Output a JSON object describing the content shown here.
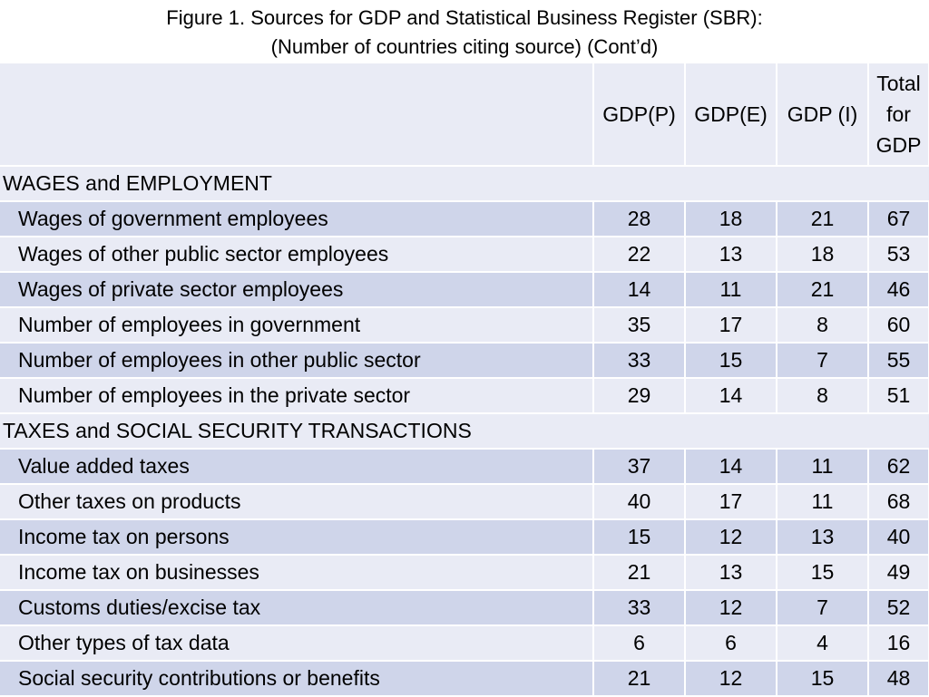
{
  "title": {
    "line1": "Figure 1. Sources for GDP and Statistical Business Register (SBR):",
    "line2": "(Number of countries citing source) (Cont’d)"
  },
  "columns": {
    "label": "",
    "gdp_p": "GDP(P)",
    "gdp_e": "GDP(E)",
    "gdp_i": "GDP (I)",
    "total_line1": "Total",
    "total_line2": "for",
    "total_line3": "GDP"
  },
  "sections": [
    {
      "heading": "WAGES and EMPLOYMENT",
      "rows": [
        {
          "label": "Wages of government employees",
          "gdp_p": "28",
          "gdp_e": "18",
          "gdp_i": "21",
          "total": "67"
        },
        {
          "label": "Wages of other public sector employees",
          "gdp_p": "22",
          "gdp_e": "13",
          "gdp_i": "18",
          "total": "53"
        },
        {
          "label": "Wages of private sector employees",
          "gdp_p": "14",
          "gdp_e": "11",
          "gdp_i": "21",
          "total": "46"
        },
        {
          "label": "Number of employees in government",
          "gdp_p": "35",
          "gdp_e": "17",
          "gdp_i": "8",
          "total": "60"
        },
        {
          "label": "Number of employees in other public sector",
          "gdp_p": "33",
          "gdp_e": "15",
          "gdp_i": "7",
          "total": "55"
        },
        {
          "label": "Number of employees in the private sector",
          "gdp_p": "29",
          "gdp_e": "14",
          "gdp_i": "8",
          "total": "51"
        }
      ]
    },
    {
      "heading": "TAXES and SOCIAL SECURITY TRANSACTIONS",
      "rows": [
        {
          "label": "Value added taxes",
          "gdp_p": "37",
          "gdp_e": "14",
          "gdp_i": "11",
          "total": "62"
        },
        {
          "label": "Other taxes on products",
          "gdp_p": "40",
          "gdp_e": "17",
          "gdp_i": "11",
          "total": "68"
        },
        {
          "label": "Income tax on persons",
          "gdp_p": "15",
          "gdp_e": "12",
          "gdp_i": "13",
          "total": "40"
        },
        {
          "label": "Income tax on businesses",
          "gdp_p": "21",
          "gdp_e": "13",
          "gdp_i": "15",
          "total": "49"
        },
        {
          "label": "Customs duties/excise tax",
          "gdp_p": "33",
          "gdp_e": "12",
          "gdp_i": "7",
          "total": "52"
        },
        {
          "label": "Other types of tax data",
          "gdp_p": "6",
          "gdp_e": "6",
          "gdp_i": "4",
          "total": "16"
        },
        {
          "label": "Social security contributions or benefits",
          "gdp_p": "21",
          "gdp_e": "12",
          "gdp_i": "15",
          "total": "48"
        }
      ]
    }
  ],
  "colors": {
    "band_dark": "#cfd5ea",
    "band_light": "#e9ebf5",
    "text": "#000000"
  }
}
